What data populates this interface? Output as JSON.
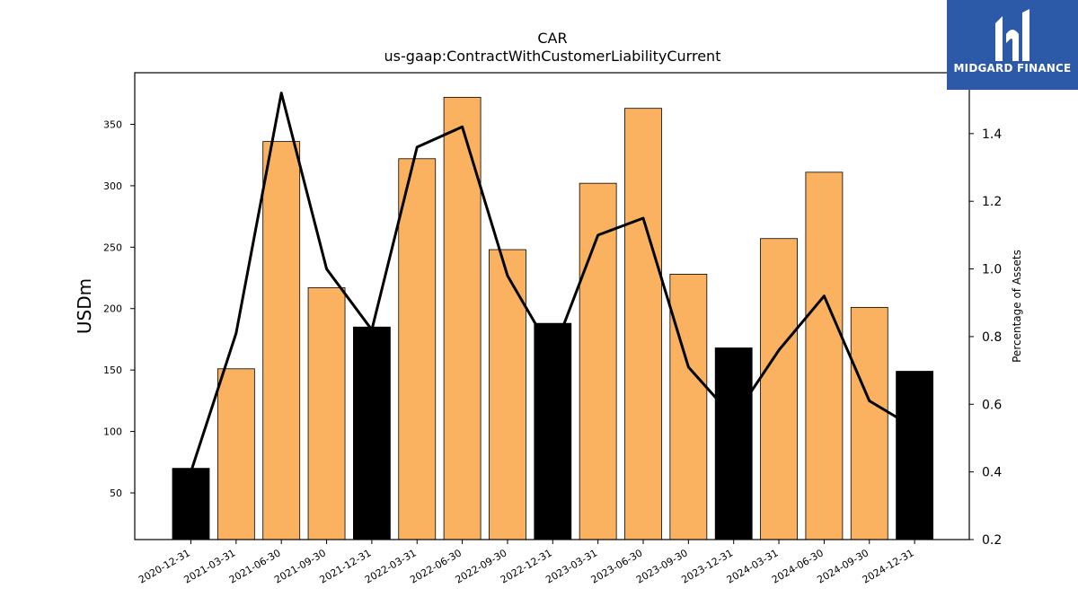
{
  "logo": {
    "text": "MIDGARD FINANCE",
    "color": "#2c5aa8"
  },
  "chart_data": {
    "type": "bar",
    "title": "CAR",
    "subtitle": "us-gaap:ContractWithCustomerLiabilityCurrent",
    "ylabel": "USDm",
    "y2label": "Percentage of Assets",
    "ylim": [
      12,
      392
    ],
    "y2lim": [
      0.2,
      1.58
    ],
    "yticks": [
      50,
      100,
      150,
      200,
      250,
      300,
      350
    ],
    "y2ticks": [
      0.2,
      0.4,
      0.6,
      0.8,
      1.0,
      1.2,
      1.4
    ],
    "categories": [
      "2020-12-31",
      "2021-03-31",
      "2021-06-30",
      "2021-09-30",
      "2021-12-31",
      "2022-03-31",
      "2022-06-30",
      "2022-09-30",
      "2022-12-31",
      "2023-03-31",
      "2023-06-30",
      "2023-09-30",
      "2023-12-31",
      "2024-03-31",
      "2024-06-30",
      "2024-09-30",
      "2024-12-31"
    ],
    "series": [
      {
        "type": "bar",
        "values": [
          70,
          151,
          336,
          217,
          185,
          322,
          372,
          248,
          188,
          302,
          363,
          228,
          168,
          257,
          311,
          201,
          149
        ],
        "colors": [
          "#000000",
          "#fbb260",
          "#fbb260",
          "#fbb260",
          "#000000",
          "#fbb260",
          "#fbb260",
          "#fbb260",
          "#000000",
          "#fbb260",
          "#fbb260",
          "#fbb260",
          "#000000",
          "#fbb260",
          "#fbb260",
          "#fbb260",
          "#000000"
        ]
      },
      {
        "type": "line",
        "axis": "right",
        "color": "#000000",
        "values": [
          0.4,
          0.81,
          1.52,
          1.0,
          0.82,
          1.36,
          1.42,
          0.98,
          0.75,
          1.1,
          1.15,
          0.71,
          0.56,
          0.76,
          0.92,
          0.61,
          0.53
        ]
      }
    ],
    "grid": false,
    "legend": "none"
  }
}
